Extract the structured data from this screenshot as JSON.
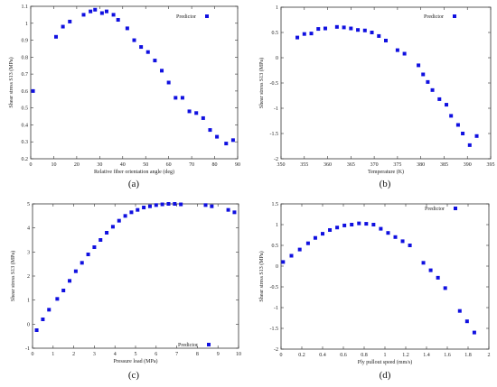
{
  "chart_data": [
    {
      "id": "a",
      "type": "scatter",
      "caption": "(a)",
      "xlabel": "Relative fiber orientation angle (deg)",
      "ylabel": "Shear stress S13 (MPa)",
      "legend": "Predictor",
      "legend_position": "top-right",
      "xlim": [
        0,
        90
      ],
      "ylim": [
        0.2,
        1.1
      ],
      "xticks": [
        0,
        10,
        20,
        30,
        40,
        50,
        60,
        70,
        80,
        90
      ],
      "yticks": [
        0.2,
        0.3,
        0.4,
        0.5,
        0.6,
        0.7,
        0.8,
        0.9,
        1.0,
        1.1
      ],
      "ytick_labels": [
        "0.2",
        "0.3",
        "0.4",
        "0.5",
        "0.6",
        "0.7",
        "0.8",
        "0.9",
        "1",
        "1.1"
      ],
      "color": "#1010e0",
      "x": [
        1,
        11,
        14,
        17,
        23,
        26,
        28,
        31,
        33,
        36,
        38,
        42,
        45,
        48,
        51,
        54,
        57,
        60,
        63,
        66,
        69,
        72,
        75,
        78,
        81,
        85,
        88
      ],
      "y": [
        0.6,
        0.92,
        0.98,
        1.01,
        1.05,
        1.07,
        1.08,
        1.06,
        1.07,
        1.05,
        1.02,
        0.97,
        0.9,
        0.86,
        0.83,
        0.78,
        0.72,
        0.65,
        0.56,
        0.56,
        0.48,
        0.47,
        0.44,
        0.37,
        0.33,
        0.29,
        0.31
      ]
    },
    {
      "id": "b",
      "type": "scatter",
      "caption": "(b)",
      "xlabel": "Temperature (K)",
      "ylabel": "Shear stress S13 (MPa)",
      "legend": "Predictor",
      "legend_position": "top-right",
      "xlim": [
        350,
        395
      ],
      "ylim": [
        -2,
        1
      ],
      "xticks": [
        350,
        355,
        360,
        365,
        370,
        375,
        380,
        385,
        390,
        395
      ],
      "yticks": [
        -2,
        -1.5,
        -1,
        -0.5,
        0,
        0.5,
        1
      ],
      "ytick_labels": [
        "-2",
        "-1.5",
        "-1",
        "-0.5",
        "0",
        "0.5",
        "1"
      ],
      "color": "#1010e0",
      "x": [
        353.5,
        355,
        356.5,
        358,
        359.5,
        362,
        363.5,
        365,
        366.5,
        368,
        369.5,
        371,
        372.5,
        375,
        376.5,
        379.5,
        380.5,
        381.5,
        382.5,
        384,
        385.5,
        386.5,
        388,
        389,
        390.5,
        392
      ],
      "y": [
        0.4,
        0.47,
        0.48,
        0.57,
        0.58,
        0.61,
        0.6,
        0.58,
        0.55,
        0.54,
        0.5,
        0.43,
        0.34,
        0.15,
        0.08,
        -0.15,
        -0.33,
        -0.48,
        -0.64,
        -0.82,
        -0.93,
        -1.15,
        -1.33,
        -1.5,
        -1.73,
        -1.55
      ]
    },
    {
      "id": "c",
      "type": "scatter",
      "caption": "(c)",
      "xlabel": "Pressure load (MPa)",
      "ylabel": "Shear stress S13 (MPa)",
      "legend": "Predictor",
      "legend_position": "bottom-right",
      "xlim": [
        0,
        10
      ],
      "ylim": [
        -1,
        5
      ],
      "xticks": [
        0,
        1,
        2,
        3,
        4,
        5,
        6,
        7,
        8,
        9,
        10
      ],
      "yticks": [
        -1,
        0,
        1,
        2,
        3,
        4,
        5
      ],
      "ytick_labels": [
        "-1",
        "0",
        "1",
        "2",
        "3",
        "4",
        "5"
      ],
      "color": "#1010e0",
      "x": [
        0.2,
        0.5,
        0.8,
        1.2,
        1.5,
        1.8,
        2.1,
        2.4,
        2.7,
        3.0,
        3.3,
        3.6,
        3.9,
        4.2,
        4.5,
        4.8,
        5.1,
        5.4,
        5.7,
        6.0,
        6.3,
        6.6,
        6.9,
        7.2,
        8.4,
        8.7,
        9.5,
        9.8
      ],
      "y": [
        -0.25,
        0.2,
        0.6,
        1.05,
        1.4,
        1.8,
        2.2,
        2.55,
        2.9,
        3.2,
        3.5,
        3.8,
        4.05,
        4.3,
        4.5,
        4.65,
        4.75,
        4.85,
        4.9,
        4.95,
        4.98,
        5.0,
        5.0,
        4.98,
        4.95,
        4.9,
        4.75,
        4.65
      ]
    },
    {
      "id": "d",
      "type": "scatter",
      "caption": "(d)",
      "xlabel": "Ply pullout speed (mm/s)",
      "ylabel": "Shear stress S13 (MPa)",
      "legend": "Predictor",
      "legend_position": "top-right",
      "xlim": [
        0,
        2
      ],
      "ylim": [
        -2,
        1.5
      ],
      "xticks": [
        0,
        0.2,
        0.4,
        0.6,
        0.8,
        1,
        1.2,
        1.4,
        1.6,
        1.8,
        2
      ],
      "yticks": [
        -2,
        -1.5,
        -1,
        -0.5,
        0,
        0.5,
        1,
        1.5
      ],
      "ytick_labels": [
        "-2",
        "-1.5",
        "-1",
        "-0.5",
        "0",
        "0.5",
        "1",
        "1.5"
      ],
      "color": "#1010e0",
      "x": [
        0.02,
        0.1,
        0.18,
        0.26,
        0.33,
        0.4,
        0.47,
        0.54,
        0.61,
        0.68,
        0.75,
        0.82,
        0.89,
        0.96,
        1.03,
        1.1,
        1.17,
        1.24,
        1.37,
        1.44,
        1.51,
        1.58,
        1.72,
        1.79,
        1.86
      ],
      "y": [
        0.1,
        0.25,
        0.4,
        0.55,
        0.68,
        0.78,
        0.87,
        0.93,
        0.98,
        1.0,
        1.03,
        1.02,
        1.0,
        0.9,
        0.8,
        0.7,
        0.6,
        0.5,
        0.08,
        -0.1,
        -0.28,
        -0.53,
        -1.08,
        -1.33,
        -1.6
      ]
    }
  ]
}
